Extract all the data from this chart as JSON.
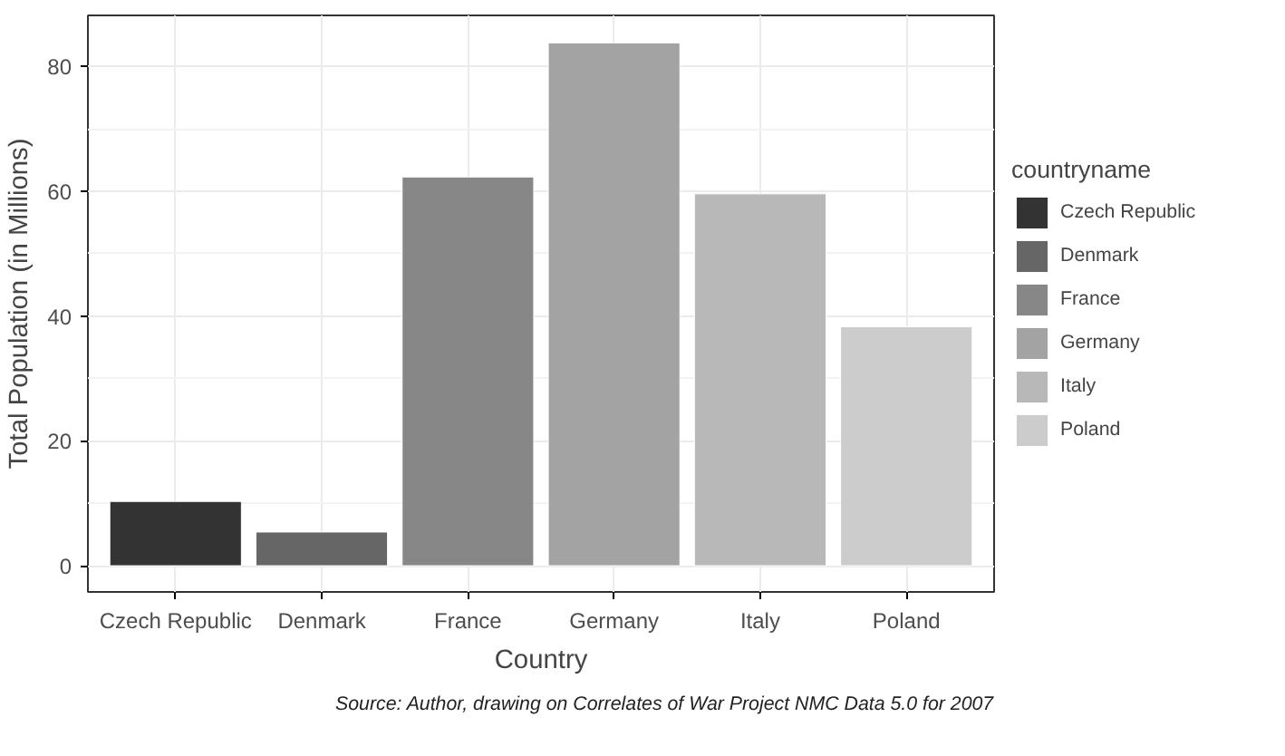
{
  "chart_data": {
    "type": "bar",
    "xlabel": "Country",
    "ylabel": "Total Population (in Millions)",
    "legend_title": "countryname",
    "categories": [
      "Czech Republic",
      "Denmark",
      "France",
      "Germany",
      "Italy",
      "Poland"
    ],
    "series": [
      {
        "name": "Czech Republic",
        "color": "#333333",
        "values": [
          10.3,
          null,
          null,
          null,
          null,
          null
        ]
      },
      {
        "name": "Denmark",
        "color": "#666666",
        "values": [
          null,
          5.4,
          null,
          null,
          null,
          null
        ]
      },
      {
        "name": "France",
        "color": "#878787",
        "values": [
          null,
          null,
          62.3,
          null,
          null,
          null
        ]
      },
      {
        "name": "Germany",
        "color": "#a3a3a3",
        "values": [
          null,
          null,
          null,
          83.8,
          null,
          null
        ]
      },
      {
        "name": "Italy",
        "color": "#b8b8b8",
        "values": [
          null,
          null,
          null,
          null,
          59.6,
          null
        ]
      },
      {
        "name": "Poland",
        "color": "#cccccc",
        "values": [
          null,
          null,
          null,
          null,
          null,
          38.3
        ]
      }
    ],
    "ylim": [
      -4.2,
      88.2
    ],
    "yticks": [
      0,
      20,
      40,
      60,
      80
    ],
    "grid": true,
    "legend": "right",
    "annotations": [
      "Source: Author, drawing on Correlates of War Project NMC Data 5.0 for 2007"
    ]
  }
}
